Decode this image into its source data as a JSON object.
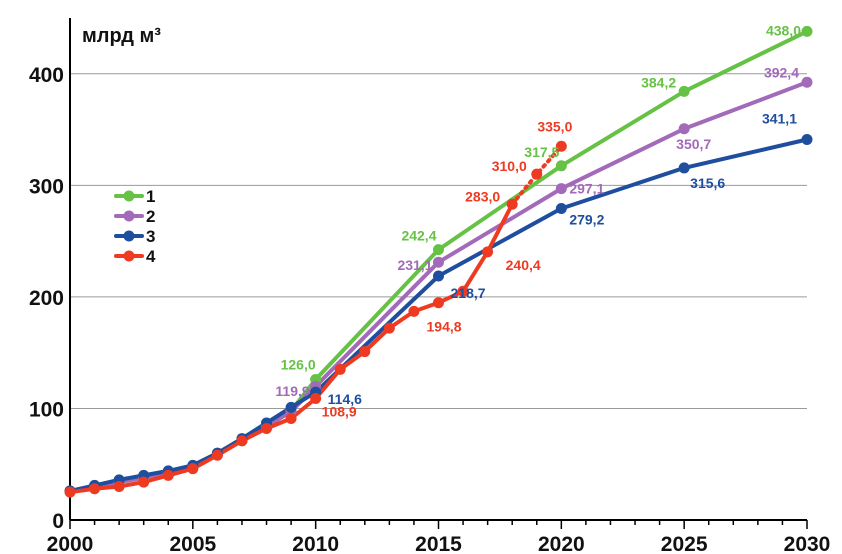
{
  "chart_data": {
    "type": "line",
    "unit": "млрд м³",
    "xlim": [
      2000,
      2030
    ],
    "ylim": [
      0,
      450
    ],
    "xticks": [
      2000,
      2005,
      2010,
      2015,
      2020,
      2025,
      2030
    ],
    "yticks": [
      0,
      100,
      200,
      300,
      400
    ],
    "grid": "horizontal",
    "legend_position": "left",
    "series": [
      {
        "name": "1",
        "color": "#66c245",
        "x": [
          2000,
          2001,
          2002,
          2003,
          2004,
          2005,
          2006,
          2007,
          2008,
          2009,
          2010,
          2015,
          2020,
          2025,
          2030
        ],
        "y": [
          26,
          30,
          34,
          38,
          43,
          49,
          59,
          71,
          84,
          98,
          126.0,
          242.4,
          317.5,
          384.2,
          438.0
        ],
        "labels": [
          {
            "x": 2010,
            "y": 126.0,
            "text": "126,0"
          },
          {
            "x": 2015,
            "y": 242.4,
            "text": "242,4"
          },
          {
            "x": 2020,
            "y": 317.5,
            "text": "317,5"
          },
          {
            "x": 2025,
            "y": 384.2,
            "text": "384,2"
          },
          {
            "x": 2030,
            "y": 438.0,
            "text": "438,0"
          }
        ]
      },
      {
        "name": "2",
        "color": "#a26ab8",
        "x": [
          2000,
          2001,
          2002,
          2003,
          2004,
          2005,
          2006,
          2007,
          2008,
          2009,
          2010,
          2015,
          2020,
          2025,
          2030
        ],
        "y": [
          26,
          30,
          34,
          38,
          43,
          48,
          59,
          71,
          84,
          97,
          119.9,
          231.1,
          297.1,
          350.7,
          392.4
        ],
        "labels": [
          {
            "x": 2010,
            "y": 119.9,
            "text": "119,9"
          },
          {
            "x": 2015,
            "y": 231.1,
            "text": "231,1"
          },
          {
            "x": 2020,
            "y": 297.1,
            "text": "297,1"
          },
          {
            "x": 2025,
            "y": 350.7,
            "text": "350,7"
          },
          {
            "x": 2030,
            "y": 392.4,
            "text": "392,4"
          }
        ]
      },
      {
        "name": "3",
        "color": "#1f4e9e",
        "x": [
          2000,
          2001,
          2002,
          2003,
          2004,
          2005,
          2006,
          2007,
          2008,
          2009,
          2010,
          2015,
          2020,
          2025,
          2030
        ],
        "y": [
          26,
          31,
          36,
          40,
          44,
          49,
          60,
          73,
          87,
          101,
          114.6,
          218.7,
          279.2,
          315.6,
          341.1
        ],
        "labels": [
          {
            "x": 2010,
            "y": 114.6,
            "text": "114,6"
          },
          {
            "x": 2015,
            "y": 218.7,
            "text": "218,7"
          },
          {
            "x": 2020,
            "y": 279.2,
            "text": "279,2"
          },
          {
            "x": 2025,
            "y": 315.6,
            "text": "315,6"
          },
          {
            "x": 2030,
            "y": 341.1,
            "text": "341,1"
          }
        ]
      },
      {
        "name": "4",
        "color": "#ef3a22",
        "x": [
          2000,
          2001,
          2002,
          2003,
          2004,
          2005,
          2006,
          2007,
          2008,
          2009,
          2010,
          2011,
          2012,
          2013,
          2014,
          2015,
          2016,
          2017,
          2018
        ],
        "y": [
          25,
          28,
          30,
          34,
          40,
          46,
          58,
          71,
          82,
          91,
          108.9,
          135,
          151,
          172,
          187,
          194.8,
          205,
          240.4,
          283.0
        ],
        "projection": {
          "x": [
            2018,
            2019,
            2020
          ],
          "y": [
            283.0,
            310.0,
            335.0
          ]
        },
        "labels": [
          {
            "x": 2010,
            "y": 108.9,
            "text": "108,9"
          },
          {
            "x": 2015,
            "y": 194.8,
            "text": "194,8"
          },
          {
            "x": 2017,
            "y": 240.4,
            "text": "240,4"
          },
          {
            "x": 2018,
            "y": 283.0,
            "text": "283,0"
          },
          {
            "x": 2019,
            "y": 310.0,
            "text": "310,0"
          },
          {
            "x": 2020,
            "y": 335.0,
            "text": "335,0"
          }
        ]
      }
    ]
  }
}
